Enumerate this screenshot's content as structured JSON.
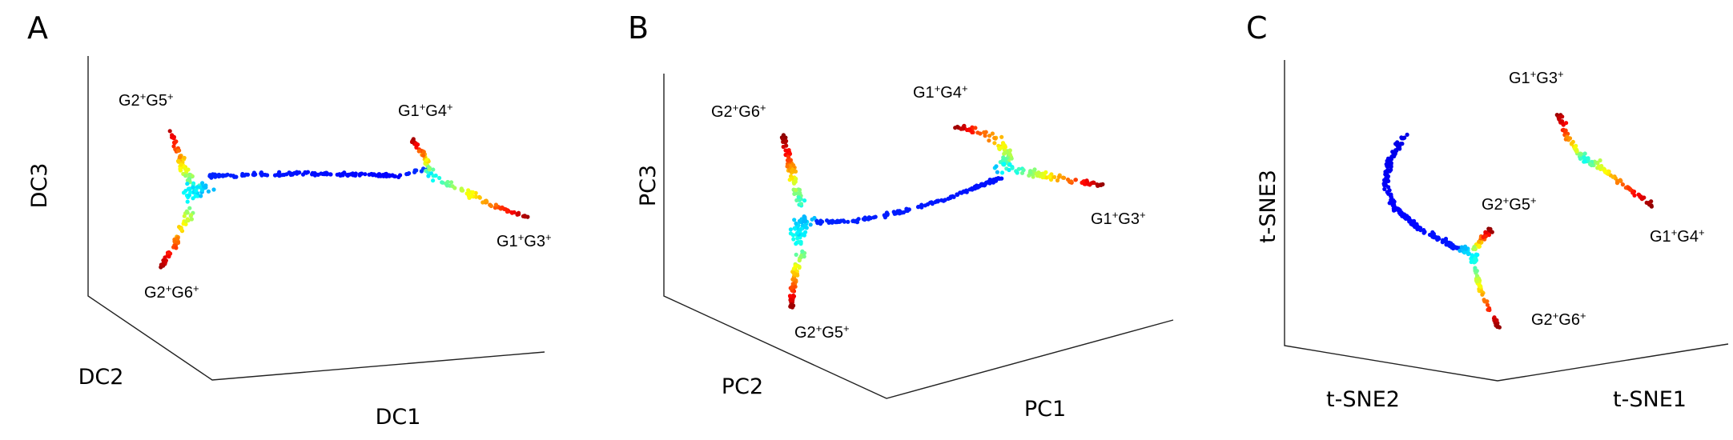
{
  "chart_data": [
    {
      "type": "scatter",
      "panel": "A",
      "xlabel": "DC1",
      "ylabel": "DC2",
      "zlabel": "DC3",
      "color_scale": "jet (blue at branch point trunk, red at branch tips)",
      "grid": false,
      "branch_labels": [
        "G2+G5+",
        "G1+G4+",
        "G1+G3+",
        "G2+G6+"
      ],
      "branch_labels_text": [
        {
          "base": "G2",
          "sup1": "+",
          "mid": "G5",
          "sup2": "+"
        },
        {
          "base": "G1",
          "sup1": "+",
          "mid": "G4",
          "sup2": "+"
        },
        {
          "base": "G1",
          "sup1": "+",
          "mid": "G3",
          "sup2": "+"
        },
        {
          "base": "G2",
          "sup1": "+",
          "mid": "G6",
          "sup2": "+"
        }
      ]
    },
    {
      "type": "scatter",
      "panel": "B",
      "xlabel": "PC1",
      "ylabel": "PC2",
      "zlabel": "PC3",
      "color_scale": "jet (blue at branch point trunk, red at branch tips)",
      "grid": false,
      "branch_labels": [
        "G2+G6+",
        "G1+G4+",
        "G1+G3+",
        "G2+G5+"
      ],
      "branch_labels_text": [
        {
          "base": "G2",
          "sup1": "+",
          "mid": "G6",
          "sup2": "+"
        },
        {
          "base": "G1",
          "sup1": "+",
          "mid": "G4",
          "sup2": "+"
        },
        {
          "base": "G1",
          "sup1": "+",
          "mid": "G3",
          "sup2": "+"
        },
        {
          "base": "G2",
          "sup1": "+",
          "mid": "G5",
          "sup2": "+"
        }
      ]
    },
    {
      "type": "scatter",
      "panel": "C",
      "xlabel": "t-SNE1",
      "ylabel": "t-SNE2",
      "zlabel": "t-SNE3",
      "color_scale": "jet (blue at branch point trunk, red at branch tips)",
      "grid": false,
      "branch_labels": [
        "G1+G3+",
        "G2+G5+",
        "G1+G4+",
        "G2+G6+"
      ],
      "branch_labels_text": [
        {
          "base": "G1",
          "sup1": "+",
          "mid": "G3",
          "sup2": "+"
        },
        {
          "base": "G2",
          "sup1": "+",
          "mid": "G5",
          "sup2": "+"
        },
        {
          "base": "G1",
          "sup1": "+",
          "mid": "G4",
          "sup2": "+"
        },
        {
          "base": "G2",
          "sup1": "+",
          "mid": "G6",
          "sup2": "+"
        }
      ]
    }
  ],
  "panels": [
    {
      "letter": "A",
      "axes": {
        "x": "DC1",
        "y": "DC2",
        "z": "DC3"
      }
    },
    {
      "letter": "B",
      "axes": {
        "x": "PC1",
        "y": "PC2",
        "z": "PC3"
      }
    },
    {
      "letter": "C",
      "axes": {
        "x": "t-SNE1",
        "y": "t-SNE2",
        "z": "t-SNE3"
      }
    }
  ]
}
